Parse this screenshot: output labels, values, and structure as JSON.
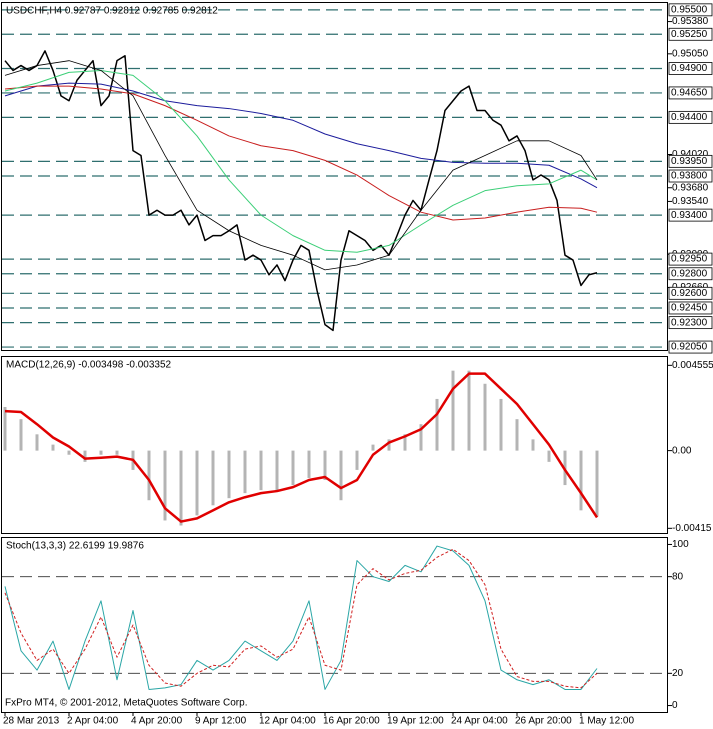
{
  "chart_data": [
    {
      "type": "line",
      "title": "USDCHF,H4  0.92787 0.92812 0.92785 0.92812",
      "categories": [
        "28 Mar 2013",
        null,
        null,
        null,
        null,
        null,
        null,
        null,
        "2 Apr 04:00",
        null,
        null,
        null,
        null,
        null,
        null,
        null,
        "4 Apr 20:00",
        null,
        null,
        null,
        null,
        null,
        null,
        null,
        "9 Apr 12:00",
        null,
        null,
        null,
        null,
        null,
        null,
        null,
        "12 Apr 04:00",
        null,
        null,
        null,
        null,
        null,
        null,
        null,
        "16 Apr 20:00",
        null,
        null,
        null,
        null,
        null,
        null,
        null,
        "19 Apr 12:00",
        null,
        null,
        null,
        null,
        null,
        null,
        null,
        "24 Apr 04:00",
        null,
        null,
        null,
        null,
        null,
        null,
        null,
        "26 Apr 20:00",
        null,
        null,
        null,
        null,
        null,
        null,
        null,
        "1 May 12:00",
        null,
        null
      ],
      "ylim": [
        0.9202,
        0.9557
      ],
      "yticks": [
        {
          "value": 0.9538,
          "label": "0.95380"
        },
        {
          "value": 0.9505,
          "label": "0.95050"
        },
        {
          "value": 0.9402,
          "label": "0.94020"
        },
        {
          "value": 0.9368,
          "label": "0.93680"
        },
        {
          "value": 0.9354,
          "label": "0.93540"
        },
        {
          "value": 0.93,
          "label": "0.93000"
        },
        {
          "value": 0.9266,
          "label": "0.92660"
        }
      ],
      "levels": [
        {
          "value": 0.955,
          "label": "0.95500"
        },
        {
          "value": 0.9525,
          "label": "0.95250"
        },
        {
          "value": 0.949,
          "label": "0.94900"
        },
        {
          "value": 0.9465,
          "label": "0.94650"
        },
        {
          "value": 0.944,
          "label": "0.94400"
        },
        {
          "value": 0.9395,
          "label": "0.93950"
        },
        {
          "value": 0.938,
          "label": "0.93800"
        },
        {
          "value": 0.934,
          "label": "0.93400"
        },
        {
          "value": 0.9295,
          "label": "0.92950"
        },
        {
          "value": 0.928,
          "label": "0.92800"
        },
        {
          "value": 0.926,
          "label": "0.92600"
        },
        {
          "value": 0.9245,
          "label": "0.92450"
        },
        {
          "value": 0.923,
          "label": "0.92300"
        },
        {
          "value": 0.9205,
          "label": "0.92050"
        }
      ],
      "series": [
        {
          "color": "#000000",
          "width": 1.5,
          "values": [
            0.9498,
            0.9488,
            0.9493,
            0.9488,
            0.9493,
            0.9508,
            0.9488,
            0.9462,
            0.9457,
            0.9478,
            0.9488,
            0.9498,
            0.9452,
            0.9462,
            0.9498,
            0.9503,
            0.9406,
            0.9401,
            0.934,
            0.9345,
            0.934,
            0.934,
            0.9345,
            0.933,
            0.934,
            0.9314,
            0.9319,
            0.9319,
            0.9324,
            0.933,
            0.9294,
            0.9299,
            0.9294,
            0.9279,
            0.9289,
            0.9273,
            0.9294,
            0.9309,
            0.9304,
            0.9263,
            0.9228,
            0.9222,
            0.9294,
            0.9324,
            0.9319,
            0.9314,
            0.9304,
            0.9309,
            0.9299,
            0.9319,
            0.934,
            0.9355,
            0.9345,
            0.9376,
            0.9406,
            0.9447,
            0.9457,
            0.9467,
            0.9472,
            0.9447,
            0.9447,
            0.9437,
            0.9432,
            0.9416,
            0.9421,
            0.9406,
            0.9376,
            0.9381,
            0.9376,
            0.9355,
            0.9299,
            0.9294,
            0.9268,
            0.9279,
            0.9281
          ]
        },
        {
          "color": "#1c1c9c",
          "width": 1,
          "x": [
            0,
            4,
            8,
            12,
            16,
            20,
            24,
            28,
            32,
            36,
            40,
            44,
            48,
            52,
            56,
            60,
            64,
            68,
            72,
            74
          ],
          "values": [
            0.9462,
            0.9472,
            0.9475,
            0.9474,
            0.9467,
            0.9457,
            0.9452,
            0.9449,
            0.9444,
            0.9437,
            0.9423,
            0.9413,
            0.9406,
            0.9398,
            0.9394,
            0.9393,
            0.9393,
            0.9391,
            0.9377,
            0.9368
          ]
        },
        {
          "color": "#c81e1e",
          "width": 1,
          "x": [
            0,
            4,
            8,
            12,
            16,
            20,
            24,
            28,
            32,
            36,
            40,
            44,
            48,
            52,
            56,
            60,
            64,
            68,
            72,
            74
          ],
          "values": [
            0.9469,
            0.9472,
            0.9472,
            0.9469,
            0.9464,
            0.9452,
            0.9437,
            0.9421,
            0.9411,
            0.9406,
            0.9396,
            0.9381,
            0.936,
            0.9343,
            0.9335,
            0.9337,
            0.9343,
            0.9348,
            0.9347,
            0.9343
          ]
        },
        {
          "color": "#3ccf78",
          "width": 1,
          "x": [
            0,
            4,
            8,
            12,
            16,
            20,
            24,
            28,
            32,
            36,
            40,
            44,
            48,
            52,
            56,
            60,
            64,
            68,
            72,
            74
          ],
          "values": [
            0.9467,
            0.9475,
            0.9486,
            0.9488,
            0.9483,
            0.9457,
            0.9421,
            0.9376,
            0.934,
            0.9319,
            0.9304,
            0.9302,
            0.9309,
            0.933,
            0.935,
            0.9365,
            0.937,
            0.9372,
            0.9386,
            0.9376
          ]
        },
        {
          "color": "#000000",
          "width": 0.8,
          "x": [
            0,
            4,
            8,
            12,
            16,
            20,
            24,
            28,
            32,
            36,
            40,
            44,
            48,
            52,
            56,
            60,
            64,
            68,
            72,
            74
          ],
          "values": [
            0.9483,
            0.9493,
            0.9498,
            0.9488,
            0.9462,
            0.9401,
            0.9345,
            0.9324,
            0.9309,
            0.9299,
            0.9284,
            0.9289,
            0.9299,
            0.9345,
            0.9386,
            0.9401,
            0.9416,
            0.9416,
            0.9401,
            0.9376
          ]
        }
      ]
    },
    {
      "type": "bar",
      "title": "MACD(12,26,9) -0.003498 -0.003352",
      "ylim": [
        -0.0044,
        0.005
      ],
      "yticks": [
        0.004555,
        {
          "value": 0,
          "label": "0.00"
        },
        -0.00415
      ],
      "series": [
        {
          "type": "bar",
          "color": "#b4b4b4",
          "x": [
            0,
            2,
            4,
            6,
            8,
            10,
            12,
            14,
            16,
            18,
            20,
            22,
            24,
            26,
            28,
            30,
            32,
            34,
            36,
            38,
            40,
            42,
            44,
            46,
            48,
            50,
            52,
            54,
            56,
            58,
            60,
            62,
            64,
            66,
            68,
            70,
            72,
            74
          ],
          "values": [
            0.00233,
            0.00168,
            0.00087,
            0.00032,
            -0.00022,
            -0.0006,
            -0.00022,
            -0.00022,
            -0.00103,
            -0.00265,
            -0.00373,
            -0.004,
            -0.00346,
            -0.00292,
            -0.00254,
            -0.00227,
            -0.00211,
            -0.00211,
            -0.00184,
            -0.00146,
            -0.00157,
            -0.00265,
            -0.00103,
            0.00032,
            0.0006,
            0.00087,
            0.00141,
            0.00276,
            0.00427,
            0.00427,
            0.00357,
            0.00276,
            0.00168,
            0.0006,
            -0.0006,
            -0.00184,
            -0.00319,
            -0.00352
          ]
        },
        {
          "type": "line",
          "color": "#e00000",
          "width": 2.5,
          "x": [
            0,
            2,
            4,
            6,
            8,
            10,
            12,
            14,
            16,
            18,
            20,
            22,
            24,
            26,
            28,
            30,
            32,
            34,
            36,
            38,
            40,
            42,
            44,
            46,
            48,
            50,
            52,
            54,
            56,
            58,
            60,
            62,
            64,
            66,
            68,
            70,
            72,
            74
          ],
          "values": [
            0.00211,
            0.00206,
            0.00141,
            0.0007,
            0.00022,
            -0.00043,
            -0.00038,
            -0.00032,
            -0.00049,
            -0.00157,
            -0.00308,
            -0.00379,
            -0.00362,
            -0.00319,
            -0.00276,
            -0.00249,
            -0.00227,
            -0.00216,
            -0.00195,
            -0.00157,
            -0.00141,
            -0.002,
            -0.00157,
            -0.00022,
            0.00043,
            0.00076,
            0.00114,
            0.00195,
            0.0033,
            0.00411,
            0.00411,
            0.0033,
            0.00249,
            0.00141,
            0.00032,
            -0.00103,
            -0.00227,
            -0.00357
          ]
        }
      ]
    },
    {
      "type": "line",
      "title": "Stoch(13,3,3) 22.6199 19.9876",
      "annotation": "FxPro MT4, © 2001-2012, MetaQuotes Software Corp.",
      "ylim": [
        -4,
        104
      ],
      "yticks": [
        100,
        80,
        20,
        0
      ],
      "levels": [
        80,
        20
      ],
      "series": [
        {
          "color": "#2aa6a6",
          "width": 1,
          "x": [
            0,
            2,
            4,
            6,
            8,
            10,
            12,
            14,
            16,
            18,
            20,
            22,
            24,
            26,
            28,
            30,
            32,
            34,
            36,
            38,
            40,
            42,
            44,
            46,
            48,
            50,
            52,
            54,
            56,
            58,
            60,
            62,
            64,
            66,
            68,
            70,
            72,
            74
          ],
          "values": [
            74,
            34,
            22,
            40,
            10,
            40,
            65,
            16,
            59,
            10,
            11,
            13,
            28,
            22,
            28,
            40,
            34,
            28,
            40,
            65,
            10,
            28,
            90,
            80,
            77,
            87,
            83,
            99,
            96,
            87,
            65,
            22,
            16,
            13,
            16,
            10,
            10,
            23
          ]
        },
        {
          "color": "#d02020",
          "width": 1,
          "style": "dashed",
          "x": [
            0,
            2,
            4,
            6,
            8,
            10,
            12,
            14,
            16,
            18,
            20,
            22,
            24,
            26,
            28,
            30,
            32,
            34,
            36,
            38,
            40,
            42,
            44,
            46,
            48,
            50,
            52,
            54,
            56,
            58,
            60,
            62,
            64,
            66,
            68,
            70,
            72,
            74
          ],
          "values": [
            70,
            45,
            28,
            35,
            20,
            35,
            55,
            30,
            50,
            25,
            14,
            12,
            20,
            25,
            24,
            35,
            37,
            30,
            35,
            55,
            25,
            22,
            75,
            85,
            78,
            82,
            84,
            92,
            97,
            90,
            75,
            35,
            18,
            15,
            15,
            12,
            11,
            20
          ]
        }
      ]
    }
  ]
}
